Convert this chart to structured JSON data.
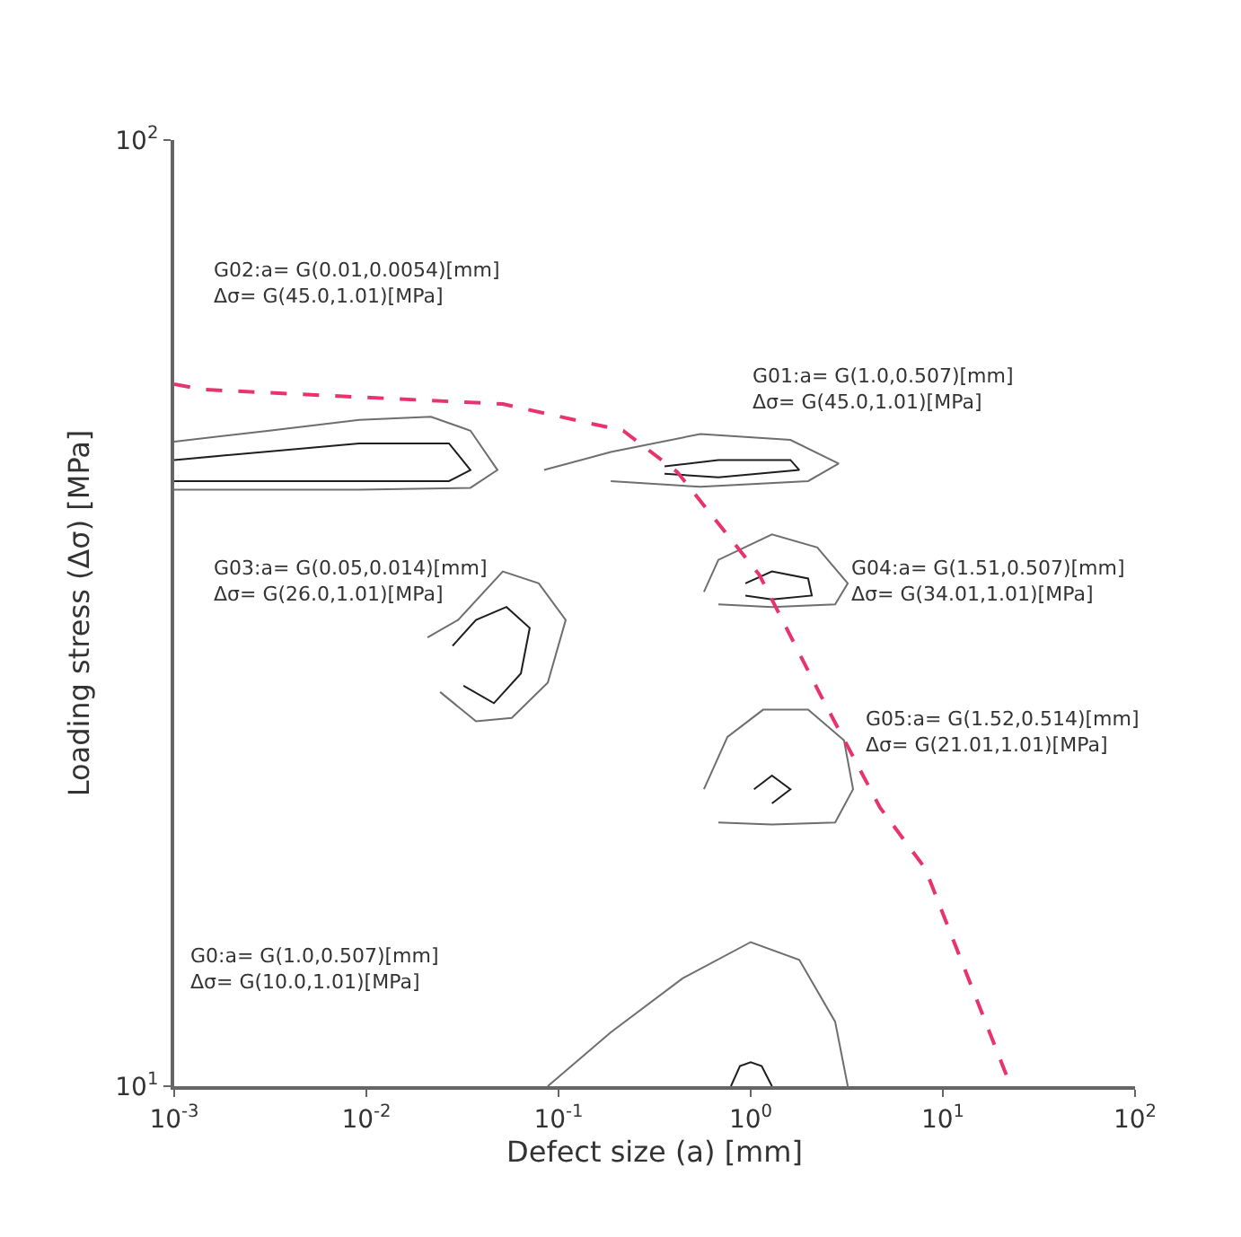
{
  "chart_data": {
    "type": "line",
    "xlabel": "Defect size (a) [mm]",
    "ylabel": "Loading stress (Δσ) [MPa]",
    "log": "xy",
    "marker": "none",
    "xlim": [
      0.001,
      100
    ],
    "ylim": [
      10,
      100
    ],
    "xticks": [
      {
        "value": 0.001,
        "label": "10$^{-3}$"
      },
      {
        "value": 0.01,
        "label": "10$^{-2}$"
      },
      {
        "value": 0.1,
        "label": "10$^{-1}$"
      },
      {
        "value": 1,
        "label": "10$^{0}$"
      },
      {
        "value": 10,
        "label": "10$^{1}$"
      },
      {
        "value": 100,
        "label": "10$^{2}$"
      }
    ],
    "yticks": [
      {
        "value": 10,
        "label": "10$^{1}$"
      },
      {
        "value": 100,
        "label": "10$^{2}$"
      }
    ],
    "series": [
      {
        "color": "#e8336d",
        "line_style": "dashed",
        "x": [
          0.001,
          0.00141,
          0.0513,
          0.217,
          0.414,
          1.11,
          2.31,
          4.71,
          8.07,
          21.7
        ],
        "values": [
          55.2,
          54.5,
          52.6,
          49.3,
          44.6,
          34.7,
          25.9,
          19.7,
          17.0,
          10.2
        ]
      },
      {
        "color": "#6e6e6e",
        "line_style": "solid",
        "x": [
          0.001,
          0.00313,
          0.00918,
          0.0217,
          0.0348,
          0.0481,
          0.0348,
          0.00918,
          0.00313,
          0.001,
          null,
          0.0841,
          0.187,
          0.547,
          1.61,
          2.87,
          1.99,
          0.547,
          0.187,
          null,
          0.571,
          0.679,
          1.29,
          2.22,
          3.2,
          2.75,
          1.29,
          0.679,
          null,
          0.571,
          0.757,
          1.16,
          1.99,
          3.06,
          3.41,
          2.75,
          1.29,
          0.679,
          null,
          0.0208,
          0.03,
          0.0513,
          0.0789,
          0.109,
          0.0879,
          0.0571,
          0.0372,
          0.0242,
          null,
          0.0879,
          0.187,
          0.442,
          1.0,
          1.79,
          2.75,
          3.2
        ],
        "values": [
          48.0,
          49.3,
          50.6,
          51.0,
          49.3,
          44.8,
          42.9,
          42.7,
          42.7,
          42.7,
          null,
          44.8,
          46.8,
          48.9,
          48.2,
          45.5,
          43.6,
          43.0,
          43.6,
          null,
          33.3,
          36.0,
          38.3,
          37.1,
          34.0,
          32.3,
          32.1,
          32.3,
          null,
          20.6,
          23.4,
          25.0,
          25.0,
          23.2,
          20.6,
          19.0,
          18.9,
          19.0,
          null,
          29.8,
          31.1,
          35.0,
          34.0,
          31.1,
          26.7,
          24.5,
          24.3,
          26.1,
          null,
          10,
          11.4,
          13.0,
          14.2,
          13.6,
          11.7,
          10
        ]
      },
      {
        "color": "#1e1e1e",
        "line_style": "solid",
        "x": [
          0.001,
          0.00918,
          0.0269,
          0.0348,
          0.0269,
          0.00918,
          0.001,
          null,
          0.356,
          0.679,
          1.61,
          1.79,
          0.679,
          0.356,
          null,
          0.938,
          1.29,
          1.99,
          2.08,
          1.29,
          0.938,
          null,
          1.04,
          1.29,
          1.61,
          1.29,
          null,
          0.0281,
          0.0372,
          0.0536,
          0.0708,
          0.0637,
          0.0461,
          0.032,
          null,
          0.789,
          0.879,
          1.0,
          1.14,
          1.29
        ],
        "values": [
          45.9,
          47.8,
          47.8,
          44.8,
          43.6,
          43.6,
          43.6,
          null,
          45.2,
          45.9,
          45.9,
          44.8,
          44.0,
          44.4,
          null,
          34.0,
          35.0,
          34.4,
          33.0,
          32.7,
          33.0,
          null,
          20.6,
          21.3,
          20.6,
          19.9,
          null,
          29.2,
          31.1,
          32.1,
          30.5,
          27.3,
          25.4,
          26.5,
          null,
          10,
          10.5,
          10.6,
          10.5,
          10
        ]
      }
    ],
    "annotations": [
      "G02:a= G(0.01,0.0054)[mm]\nΔσ= G(45.0,1.01)[MPa]",
      "G01:a= G(1.0,0.507)[mm]\nΔσ= G(45.0,1.01)[MPa]",
      "G03:a= G(0.05,0.014)[mm]\nΔσ= G(26.0,1.01)[MPa]",
      "G04:a= G(1.51,0.507)[mm]\nΔσ= G(34.01,1.01)[MPa]",
      "G05:a= G(1.52,0.514)[mm]\nΔσ= G(21.01,1.01)[MPa]",
      "G0:a= G(1.0,0.507)[mm]\nΔσ= G(10.0,1.01)[MPa]"
    ]
  }
}
